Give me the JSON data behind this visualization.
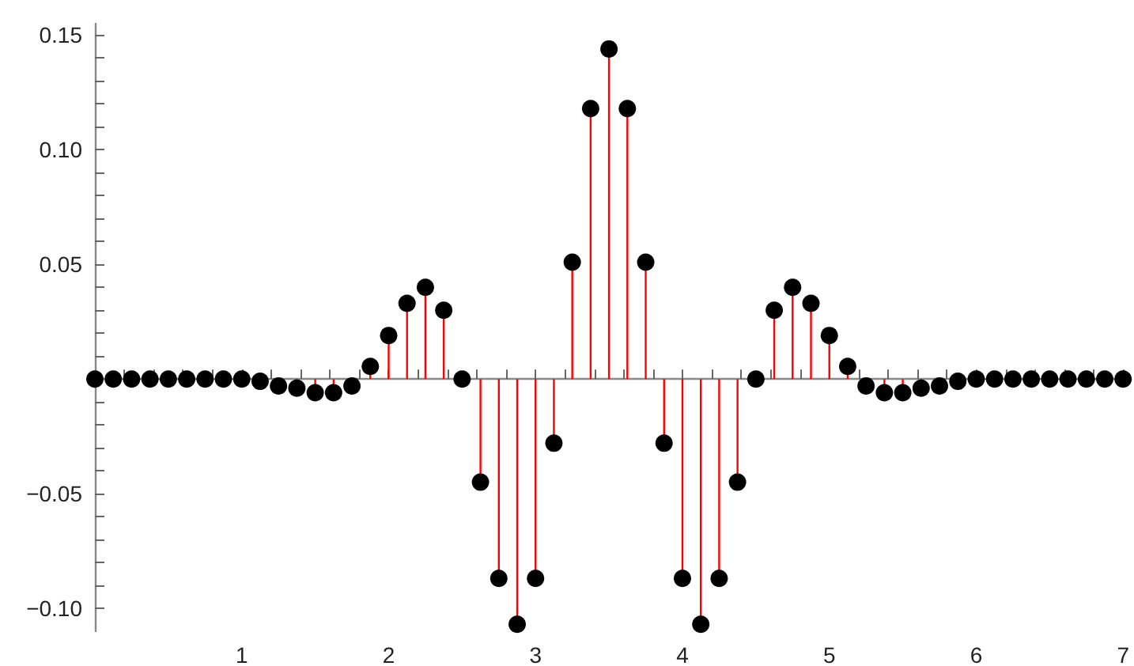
{
  "chart_data": {
    "type": "lollipop",
    "x": [
      0,
      0.125,
      0.25,
      0.375,
      0.5,
      0.625,
      0.75,
      0.875,
      1,
      1.125,
      1.25,
      1.375,
      1.5,
      1.625,
      1.75,
      1.875,
      2,
      2.125,
      2.25,
      2.375,
      2.5,
      2.625,
      2.75,
      2.875,
      3,
      3.125,
      3.25,
      3.375,
      3.5,
      3.625,
      3.75,
      3.875,
      4,
      4.125,
      4.25,
      4.375,
      4.5,
      4.625,
      4.75,
      4.875,
      5,
      5.125,
      5.25,
      5.375,
      5.5,
      5.625,
      5.75,
      5.875,
      6,
      6.125,
      6.25,
      6.375,
      6.5,
      6.625,
      6.75,
      6.875,
      7
    ],
    "series": [
      {
        "color": "#000000",
        "values": [
          0,
          0,
          0,
          0,
          0,
          0,
          0,
          0,
          0,
          -0.001,
          -0.003,
          -0.004,
          -0.006,
          -0.006,
          -0.003,
          0.0055,
          0.019,
          0.033,
          0.04,
          0.03,
          0,
          -0.045,
          -0.087,
          -0.107,
          -0.087,
          -0.028,
          0.051,
          0.118,
          0.144,
          0.118,
          0.051,
          -0.028,
          -0.087,
          -0.107,
          -0.087,
          -0.045,
          0,
          0.03,
          0.04,
          0.033,
          0.019,
          0.0055,
          -0.003,
          -0.006,
          -0.006,
          -0.004,
          -0.003,
          -0.001,
          0,
          0,
          0,
          0,
          0,
          0,
          0,
          0,
          0
        ]
      }
    ],
    "marker": "circle",
    "xlim": [
      0,
      7.04
    ],
    "ylim": [
      -0.11,
      0.155
    ],
    "xticks": [
      1,
      2,
      3,
      4,
      5,
      6,
      7,
      {
        "value": 0.2,
        "label": null
      },
      {
        "value": 0.4,
        "label": null
      },
      {
        "value": 0.6,
        "label": null
      },
      {
        "value": 0.8,
        "label": null
      },
      {
        "value": 1.2,
        "label": null
      },
      {
        "value": 1.4,
        "label": null
      },
      {
        "value": 1.6,
        "label": null
      },
      {
        "value": 1.8,
        "label": null
      },
      {
        "value": 2.2,
        "label": null
      },
      {
        "value": 2.4,
        "label": null
      },
      {
        "value": 2.6,
        "label": null
      },
      {
        "value": 2.8,
        "label": null
      },
      {
        "value": 3.2,
        "label": null
      },
      {
        "value": 3.4,
        "label": null
      },
      {
        "value": 3.6,
        "label": null
      },
      {
        "value": 3.8,
        "label": null
      },
      {
        "value": 4.2,
        "label": null
      },
      {
        "value": 4.4,
        "label": null
      },
      {
        "value": 4.6,
        "label": null
      },
      {
        "value": 4.8,
        "label": null
      },
      {
        "value": 5.2,
        "label": null
      },
      {
        "value": 5.4,
        "label": null
      },
      {
        "value": 5.6,
        "label": null
      },
      {
        "value": 5.8,
        "label": null
      },
      {
        "value": 6.2,
        "label": null
      },
      {
        "value": 6.4,
        "label": null
      },
      {
        "value": 6.6,
        "label": null
      },
      {
        "value": 6.8,
        "label": null
      }
    ],
    "yticks": [
      {
        "value": -0.1,
        "label": "−0.10"
      },
      {
        "value": -0.05,
        "label": "−0.05"
      },
      {
        "value": 0.05,
        "label": "0.05"
      },
      {
        "value": 0.1,
        "label": "0.10"
      },
      {
        "value": 0.15,
        "label": "0.15"
      },
      {
        "value": -0.09,
        "label": null
      },
      {
        "value": -0.08,
        "label": null
      },
      {
        "value": -0.07,
        "label": null
      },
      {
        "value": -0.06,
        "label": null
      },
      {
        "value": -0.04,
        "label": null
      },
      {
        "value": -0.03,
        "label": null
      },
      {
        "value": -0.02,
        "label": null
      },
      {
        "value": -0.01,
        "label": null
      },
      {
        "value": 0.01,
        "label": null
      },
      {
        "value": 0.02,
        "label": null
      },
      {
        "value": 0.03,
        "label": null
      },
      {
        "value": 0.04,
        "label": null
      },
      {
        "value": 0.06,
        "label": null
      },
      {
        "value": 0.07,
        "label": null
      },
      {
        "value": 0.08,
        "label": null
      },
      {
        "value": 0.09,
        "label": null
      },
      {
        "value": 0.11,
        "label": null
      },
      {
        "value": 0.12,
        "label": null
      },
      {
        "value": 0.13,
        "label": null
      },
      {
        "value": 0.14,
        "label": null
      }
    ]
  }
}
